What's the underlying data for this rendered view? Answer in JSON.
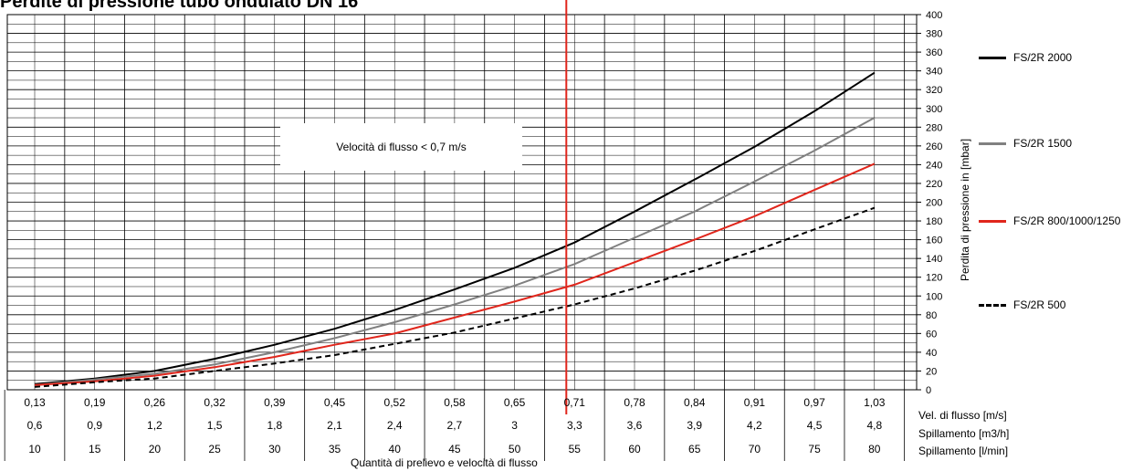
{
  "chart_data": {
    "type": "line",
    "title": "Perdite di pressione tubo ondulato DN 16",
    "ylabel": "Perdita di pressione in [mbar]",
    "xlabel": "Quantità di prelievo e velocità di flusso",
    "ylim": [
      0,
      400
    ],
    "y_ticks": [
      0,
      20,
      40,
      60,
      80,
      100,
      120,
      140,
      160,
      180,
      200,
      220,
      240,
      260,
      280,
      300,
      320,
      340,
      360,
      380,
      400
    ],
    "x_rows": [
      {
        "label": "Vel. di flusso [m/s]",
        "values": [
          "0,13",
          "0,19",
          "0,26",
          "0,32",
          "0,39",
          "0,45",
          "0,52",
          "0,58",
          "0,65",
          "0,71",
          "0,78",
          "0,84",
          "0,91",
          "0,97",
          "1,03"
        ]
      },
      {
        "label": "Spillamento [m3/h]",
        "values": [
          "0,6",
          "0,9",
          "1,2",
          "1,5",
          "1,8",
          "2,1",
          "2,4",
          "2,7",
          "3",
          "3,3",
          "3,6",
          "3,9",
          "4,2",
          "4,5",
          "4,8"
        ]
      },
      {
        "label": "Spillamento [l/min]",
        "values": [
          "10",
          "15",
          "20",
          "25",
          "30",
          "35",
          "40",
          "45",
          "50",
          "55",
          "60",
          "65",
          "70",
          "75",
          "80"
        ]
      }
    ],
    "x": [
      10,
      15,
      20,
      25,
      30,
      35,
      40,
      45,
      50,
      55,
      60,
      65,
      70,
      75,
      80
    ],
    "series": [
      {
        "name": "FS/2R 2000",
        "color": "#000000",
        "dash": "solid",
        "values": [
          6,
          12,
          20,
          33,
          48,
          65,
          85,
          107,
          130,
          157,
          190,
          224,
          259,
          297,
          338
        ]
      },
      {
        "name": "FS/2R 1500",
        "color": "#808080",
        "dash": "solid",
        "values": [
          5,
          11,
          17,
          27,
          40,
          55,
          72,
          91,
          111,
          134,
          162,
          190,
          222,
          255,
          290
        ]
      },
      {
        "name": "FS/2R 800/1000/1250",
        "color": "#e0261c",
        "dash": "solid",
        "values": [
          5,
          9,
          15,
          24,
          35,
          48,
          60,
          77,
          94,
          112,
          136,
          160,
          185,
          213,
          241
        ]
      },
      {
        "name": "FS/2R 500",
        "color": "#000000",
        "dash": "dashed",
        "values": [
          3,
          8,
          12,
          20,
          28,
          37,
          49,
          61,
          76,
          91,
          108,
          127,
          148,
          171,
          194
        ]
      }
    ],
    "reference_line": {
      "x": 55,
      "color": "#e0261c"
    },
    "annotation": "Velocità di flusso < 0,7 m/s",
    "grid": true,
    "legend_position": "right"
  }
}
